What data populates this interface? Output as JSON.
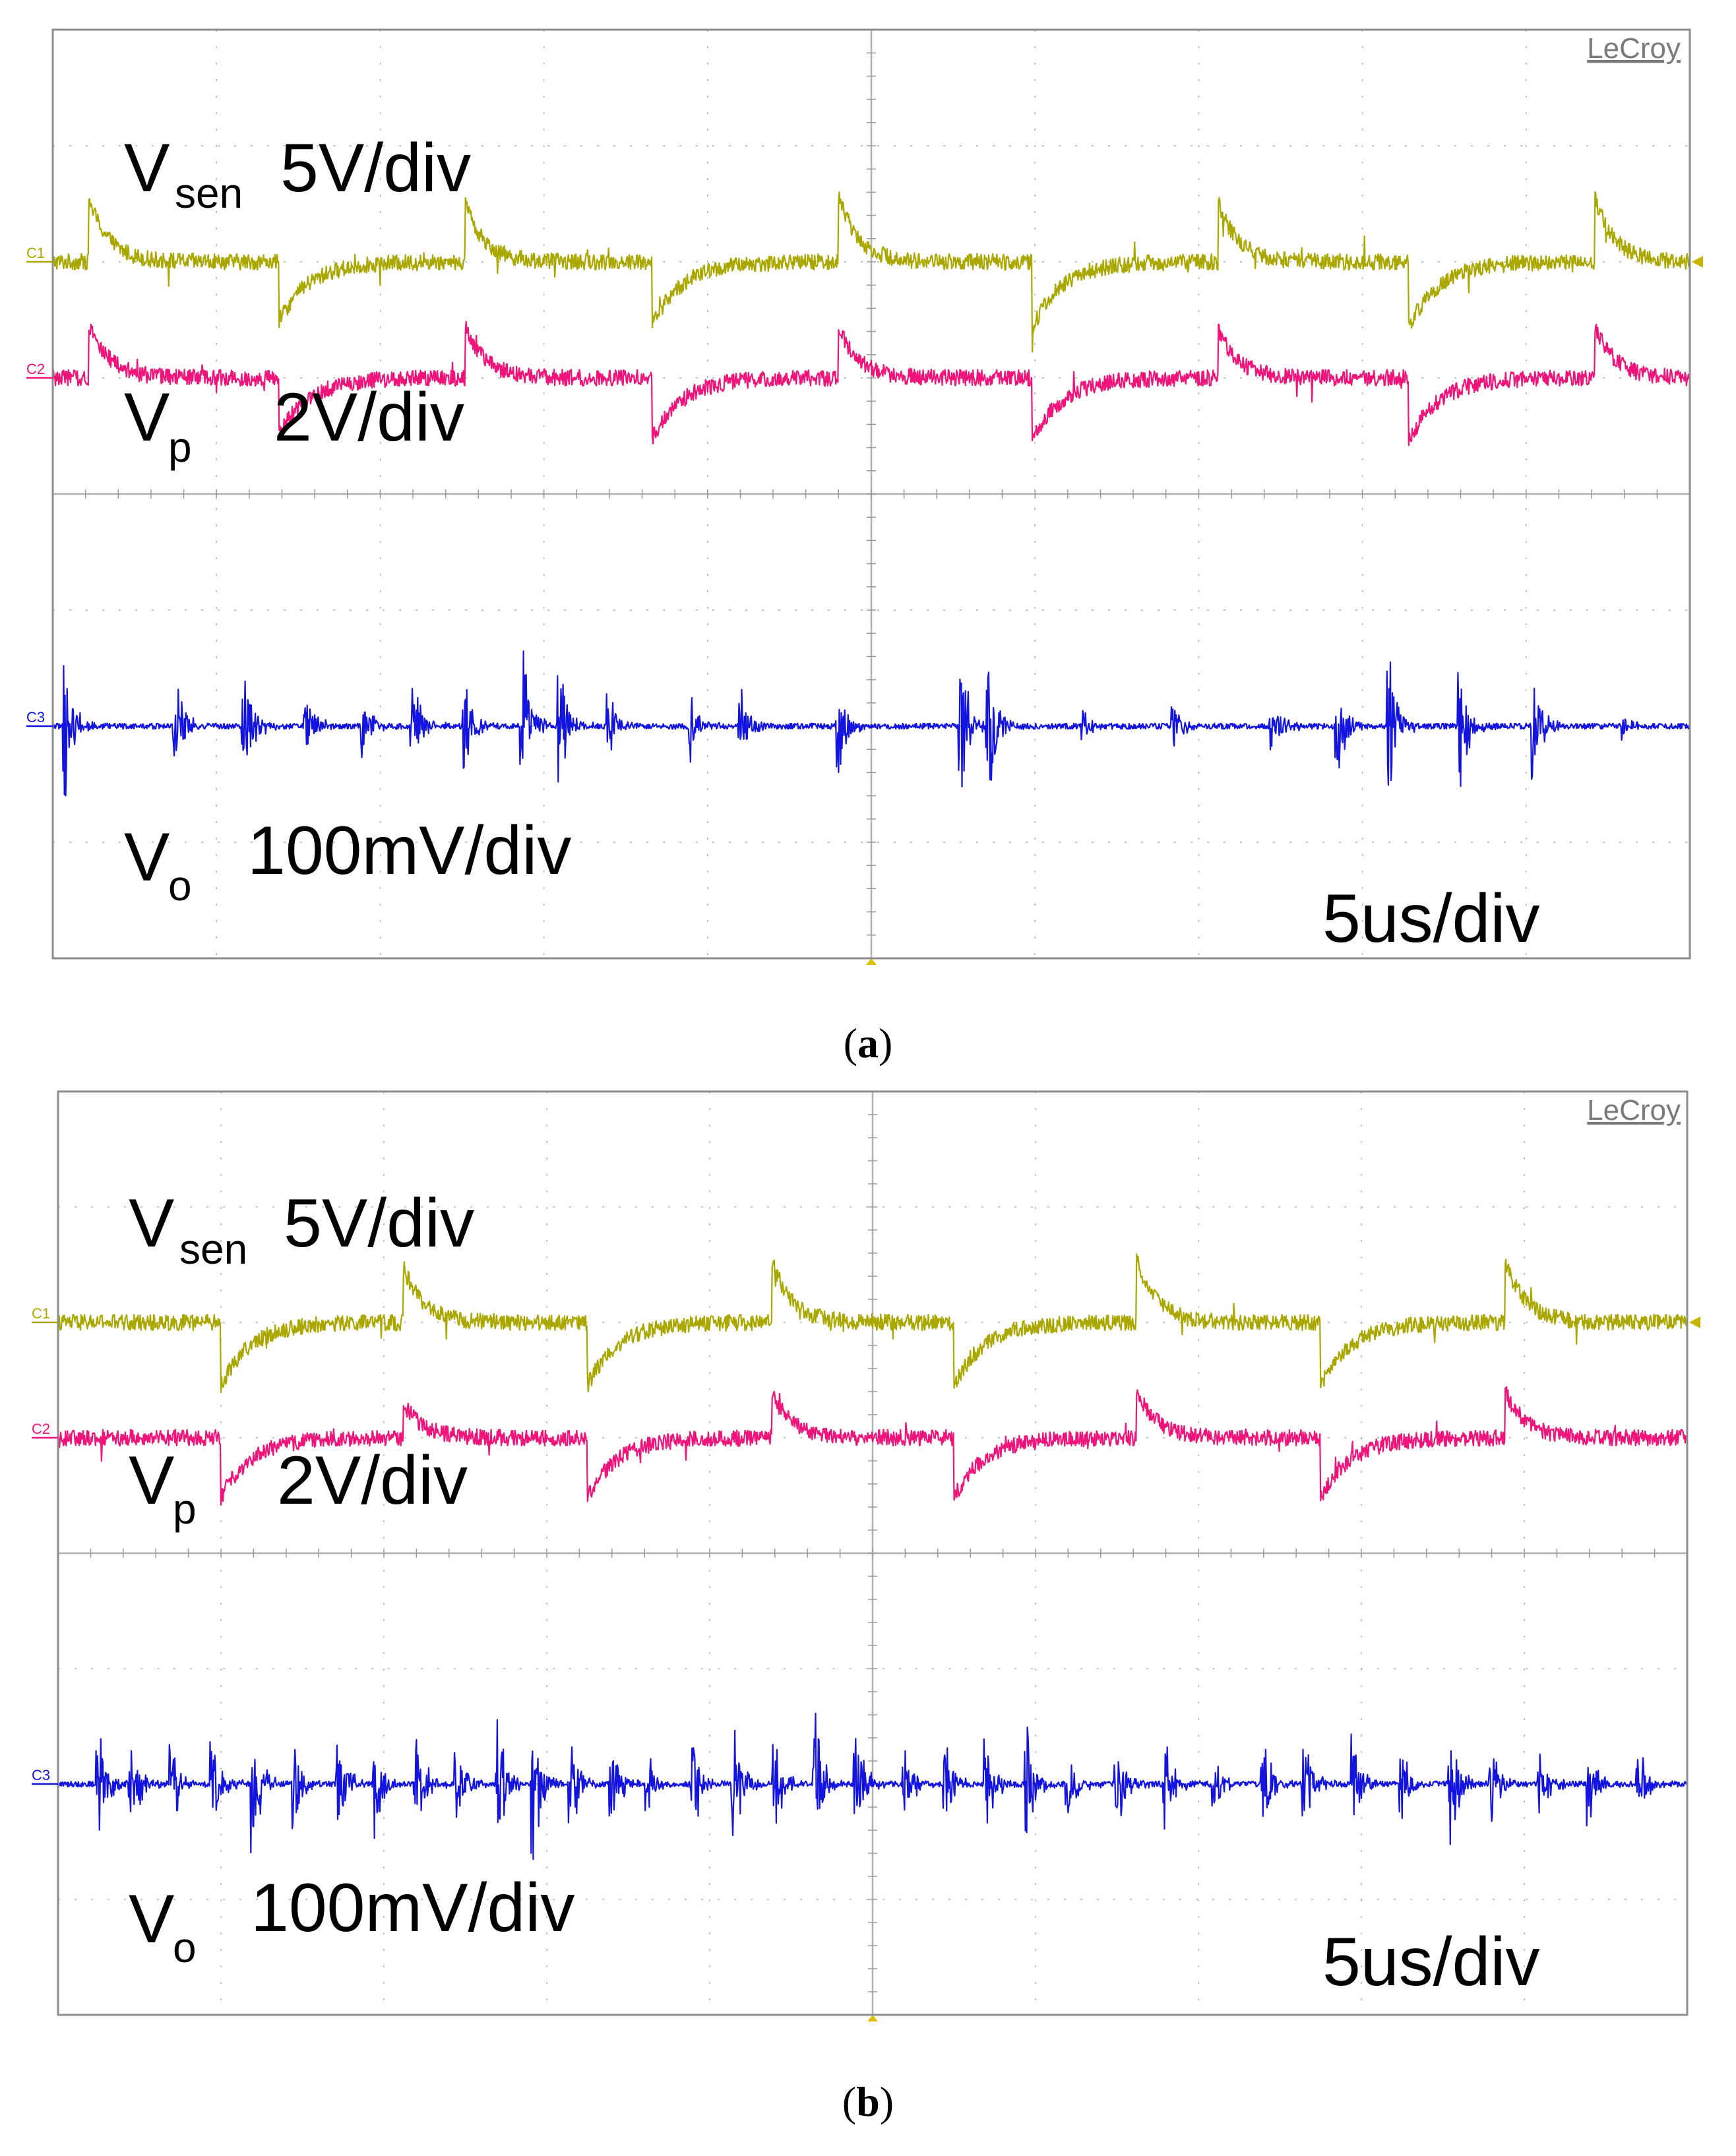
{
  "figure": {
    "panels": [
      {
        "id": "a",
        "caption_open": "(",
        "caption_letter": "a",
        "caption_close": ")",
        "brand": "LeCroy",
        "time_scale": "5us/div",
        "channels": [
          {
            "tag": "C1",
            "symbol": "V",
            "subscript": "sen",
            "scale": "5V/div",
            "color": "#aaa800"
          },
          {
            "tag": "C2",
            "symbol": "V",
            "subscript": "p",
            "scale": "2V/div",
            "color": "#f0147a"
          },
          {
            "tag": "C3",
            "symbol": "V",
            "subscript": "o",
            "scale": "100mV/div",
            "color": "#1414e0"
          }
        ]
      },
      {
        "id": "b",
        "caption_open": "(",
        "caption_letter": "b",
        "caption_close": ")",
        "brand": "LeCroy",
        "time_scale": "5us/div",
        "channels": [
          {
            "tag": "C1",
            "symbol": "V",
            "subscript": "sen",
            "scale": "5V/div",
            "color": "#aaa800"
          },
          {
            "tag": "C2",
            "symbol": "V",
            "subscript": "p",
            "scale": "2V/div",
            "color": "#f0147a"
          },
          {
            "tag": "C3",
            "symbol": "V",
            "subscript": "o",
            "scale": "100mV/div",
            "color": "#1414e0"
          }
        ]
      }
    ]
  },
  "chart_data": [
    {
      "type": "line",
      "panel": "a",
      "x_unit": "div",
      "y_unit": "div",
      "xlim": [
        0,
        10
      ],
      "ylim": [
        -4,
        4
      ],
      "grid": true,
      "channel_offsets_div": [
        2.0,
        1.0,
        -2.0
      ],
      "series": [
        {
          "name": "V_sen",
          "scale": "5V/div",
          "baseline_div": 2.0,
          "edges": [
            {
              "t": 0.22,
              "dir": "up",
              "amp": 0.55,
              "tau": 0.12
            },
            {
              "t": 1.38,
              "dir": "down",
              "amp": 0.52,
              "tau": 0.18
            },
            {
              "t": 2.52,
              "dir": "up",
              "amp": 0.5,
              "tau": 0.12
            },
            {
              "t": 3.66,
              "dir": "down",
              "amp": 0.55,
              "tau": 0.18
            },
            {
              "t": 4.8,
              "dir": "up",
              "amp": 0.58,
              "tau": 0.12
            },
            {
              "t": 5.98,
              "dir": "down",
              "amp": 0.58,
              "tau": 0.18
            },
            {
              "t": 7.12,
              "dir": "up",
              "amp": 0.52,
              "tau": 0.12
            },
            {
              "t": 8.28,
              "dir": "down",
              "amp": 0.58,
              "tau": 0.18
            },
            {
              "t": 9.42,
              "dir": "up",
              "amp": 0.55,
              "tau": 0.12
            }
          ]
        },
        {
          "name": "V_p",
          "scale": "2V/div",
          "baseline_div": 1.0,
          "edges": [
            {
              "t": 0.22,
              "dir": "up",
              "amp": 0.48,
              "tau": 0.12
            },
            {
              "t": 1.38,
              "dir": "down",
              "amp": 0.5,
              "tau": 0.18
            },
            {
              "t": 2.52,
              "dir": "up",
              "amp": 0.45,
              "tau": 0.12
            },
            {
              "t": 3.66,
              "dir": "down",
              "amp": 0.53,
              "tau": 0.18
            },
            {
              "t": 4.8,
              "dir": "up",
              "amp": 0.45,
              "tau": 0.12
            },
            {
              "t": 5.98,
              "dir": "down",
              "amp": 0.55,
              "tau": 0.18
            },
            {
              "t": 7.12,
              "dir": "up",
              "amp": 0.42,
              "tau": 0.12
            },
            {
              "t": 8.28,
              "dir": "down",
              "amp": 0.55,
              "tau": 0.18
            },
            {
              "t": 9.42,
              "dir": "up",
              "amp": 0.45,
              "tau": 0.12
            }
          ]
        },
        {
          "name": "V_o",
          "scale": "100mV/div",
          "baseline_div": -2.0,
          "bursts": [
            {
              "t": 0.08,
              "amp": 0.4
            },
            {
              "t": 0.75,
              "amp": 0.35
            },
            {
              "t": 1.17,
              "amp": 0.45
            },
            {
              "t": 1.55,
              "amp": 0.22
            },
            {
              "t": 1.9,
              "amp": 0.2
            },
            {
              "t": 2.2,
              "amp": 0.32
            },
            {
              "t": 2.52,
              "amp": 0.25
            },
            {
              "t": 2.87,
              "amp": 0.45
            },
            {
              "t": 3.1,
              "amp": 0.4
            },
            {
              "t": 3.4,
              "amp": 0.18
            },
            {
              "t": 3.9,
              "amp": 0.2
            },
            {
              "t": 4.2,
              "amp": 0.3
            },
            {
              "t": 4.8,
              "amp": 0.28
            },
            {
              "t": 5.55,
              "amp": 0.45
            },
            {
              "t": 5.72,
              "amp": 0.5
            },
            {
              "t": 6.3,
              "amp": 0.12
            },
            {
              "t": 6.85,
              "amp": 0.15
            },
            {
              "t": 7.45,
              "amp": 0.22
            },
            {
              "t": 7.85,
              "amp": 0.3
            },
            {
              "t": 8.17,
              "amp": 0.45
            },
            {
              "t": 8.6,
              "amp": 0.4
            },
            {
              "t": 9.05,
              "amp": 0.32
            },
            {
              "t": 9.6,
              "amp": 0.1
            }
          ]
        }
      ]
    },
    {
      "type": "line",
      "panel": "b",
      "x_unit": "div",
      "y_unit": "div",
      "xlim": [
        0,
        10
      ],
      "ylim": [
        -4,
        4
      ],
      "grid": true,
      "channel_offsets_div": [
        2.0,
        1.0,
        -2.0
      ],
      "series": [
        {
          "name": "V_sen",
          "scale": "5V/div",
          "baseline_div": 2.0,
          "edges": [
            {
              "t": 1.0,
              "dir": "down",
              "amp": 0.55,
              "tau": 0.18
            },
            {
              "t": 2.12,
              "dir": "up",
              "amp": 0.48,
              "tau": 0.12
            },
            {
              "t": 3.25,
              "dir": "down",
              "amp": 0.55,
              "tau": 0.18
            },
            {
              "t": 4.38,
              "dir": "up",
              "amp": 0.55,
              "tau": 0.12
            },
            {
              "t": 5.5,
              "dir": "down",
              "amp": 0.55,
              "tau": 0.18
            },
            {
              "t": 6.62,
              "dir": "up",
              "amp": 0.55,
              "tau": 0.12
            },
            {
              "t": 7.75,
              "dir": "down",
              "amp": 0.55,
              "tau": 0.18
            },
            {
              "t": 8.88,
              "dir": "up",
              "amp": 0.55,
              "tau": 0.12
            }
          ]
        },
        {
          "name": "V_p",
          "scale": "2V/div",
          "baseline_div": 1.0,
          "edges": [
            {
              "t": 1.0,
              "dir": "down",
              "amp": 0.52,
              "tau": 0.18
            },
            {
              "t": 2.12,
              "dir": "up",
              "amp": 0.3,
              "tau": 0.12
            },
            {
              "t": 3.25,
              "dir": "down",
              "amp": 0.52,
              "tau": 0.18
            },
            {
              "t": 4.38,
              "dir": "up",
              "amp": 0.4,
              "tau": 0.12
            },
            {
              "t": 5.5,
              "dir": "down",
              "amp": 0.52,
              "tau": 0.18
            },
            {
              "t": 6.62,
              "dir": "up",
              "amp": 0.42,
              "tau": 0.12
            },
            {
              "t": 7.75,
              "dir": "down",
              "amp": 0.52,
              "tau": 0.18
            },
            {
              "t": 8.88,
              "dir": "up",
              "amp": 0.42,
              "tau": 0.12
            }
          ]
        },
        {
          "name": "V_o",
          "scale": "100mV/div",
          "baseline_div": -2.0,
          "bursts": [
            {
              "t": 0.25,
              "amp": 0.35
            },
            {
              "t": 0.45,
              "amp": 0.3
            },
            {
              "t": 0.7,
              "amp": 0.3
            },
            {
              "t": 0.95,
              "amp": 0.35
            },
            {
              "t": 1.2,
              "amp": 0.45
            },
            {
              "t": 1.45,
              "amp": 0.3
            },
            {
              "t": 1.72,
              "amp": 0.35
            },
            {
              "t": 1.95,
              "amp": 0.3
            },
            {
              "t": 2.2,
              "amp": 0.35
            },
            {
              "t": 2.45,
              "amp": 0.3
            },
            {
              "t": 2.7,
              "amp": 0.4
            },
            {
              "t": 2.92,
              "amp": 0.45
            },
            {
              "t": 3.15,
              "amp": 0.35
            },
            {
              "t": 3.4,
              "amp": 0.3
            },
            {
              "t": 3.62,
              "amp": 0.25
            },
            {
              "t": 3.9,
              "amp": 0.35
            },
            {
              "t": 4.15,
              "amp": 0.35
            },
            {
              "t": 4.4,
              "amp": 0.3
            },
            {
              "t": 4.65,
              "amp": 0.4
            },
            {
              "t": 4.9,
              "amp": 0.35
            },
            {
              "t": 5.2,
              "amp": 0.25
            },
            {
              "t": 5.45,
              "amp": 0.3
            },
            {
              "t": 5.7,
              "amp": 0.3
            },
            {
              "t": 5.95,
              "amp": 0.3
            },
            {
              "t": 6.2,
              "amp": 0.25
            },
            {
              "t": 6.5,
              "amp": 0.3
            },
            {
              "t": 6.8,
              "amp": 0.25
            },
            {
              "t": 7.1,
              "amp": 0.22
            },
            {
              "t": 7.4,
              "amp": 0.35
            },
            {
              "t": 7.65,
              "amp": 0.4
            },
            {
              "t": 7.95,
              "amp": 0.35
            },
            {
              "t": 8.25,
              "amp": 0.28
            },
            {
              "t": 8.55,
              "amp": 0.35
            },
            {
              "t": 8.8,
              "amp": 0.3
            },
            {
              "t": 9.1,
              "amp": 0.3
            },
            {
              "t": 9.4,
              "amp": 0.28
            },
            {
              "t": 9.7,
              "amp": 0.25
            }
          ]
        }
      ]
    }
  ]
}
